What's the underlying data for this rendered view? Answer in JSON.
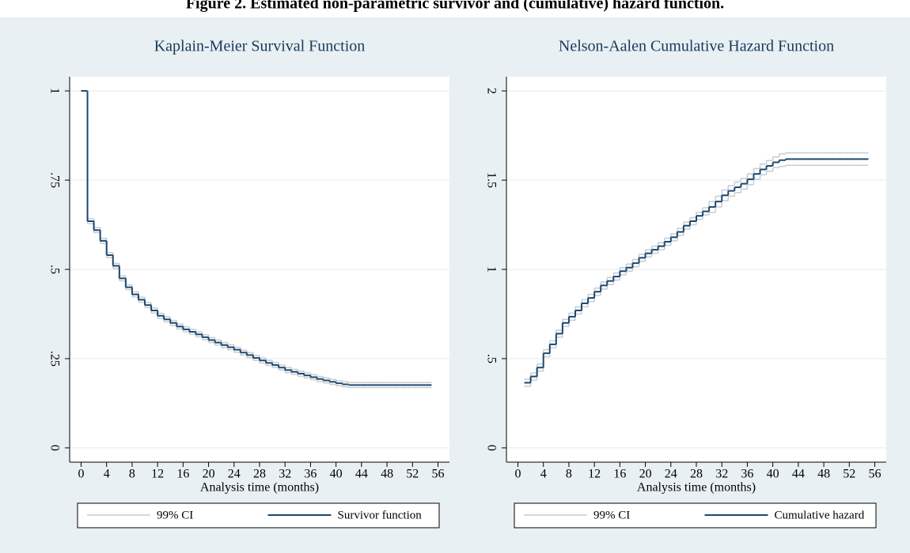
{
  "title": "Figure 2. Estimated non-parametric survivor and (cumulative) hazard function.",
  "chart_data": [
    {
      "type": "step",
      "title": "Kaplain-Meier Survival Function",
      "x_label": "Analysis time (months)",
      "x": [
        0,
        1,
        2,
        3,
        4,
        5,
        6,
        7,
        8,
        9,
        10,
        11,
        12,
        13,
        14,
        15,
        16,
        17,
        18,
        19,
        20,
        21,
        22,
        23,
        24,
        25,
        26,
        27,
        28,
        29,
        30,
        31,
        32,
        33,
        34,
        35,
        36,
        37,
        38,
        39,
        40,
        41,
        42,
        43,
        44,
        45,
        46,
        47,
        48,
        49,
        50,
        51,
        52,
        53,
        54,
        55
      ],
      "series": [
        {
          "name": "99% CI",
          "color": "#c8ccd0",
          "lower": [
            1,
            0.628,
            0.603,
            0.573,
            0.533,
            0.503,
            0.468,
            0.443,
            0.423,
            0.408,
            0.393,
            0.378,
            0.363,
            0.353,
            0.343,
            0.333,
            0.325,
            0.318,
            0.311,
            0.303,
            0.295,
            0.288,
            0.281,
            0.275,
            0.268,
            0.26,
            0.253,
            0.245,
            0.238,
            0.231,
            0.225,
            0.218,
            0.211,
            0.206,
            0.201,
            0.196,
            0.191,
            0.186,
            0.182,
            0.178,
            0.174,
            0.171,
            0.169,
            0.169,
            0.169,
            0.169,
            0.169,
            0.169,
            0.169,
            0.169,
            0.169,
            0.169,
            0.169,
            0.169,
            0.169,
            0.169
          ],
          "upper": [
            1,
            0.642,
            0.617,
            0.587,
            0.547,
            0.517,
            0.482,
            0.457,
            0.437,
            0.422,
            0.407,
            0.392,
            0.377,
            0.367,
            0.357,
            0.347,
            0.339,
            0.332,
            0.325,
            0.317,
            0.309,
            0.302,
            0.295,
            0.289,
            0.282,
            0.274,
            0.267,
            0.259,
            0.252,
            0.245,
            0.239,
            0.232,
            0.225,
            0.22,
            0.215,
            0.21,
            0.205,
            0.2,
            0.196,
            0.192,
            0.188,
            0.185,
            0.183,
            0.183,
            0.183,
            0.183,
            0.183,
            0.183,
            0.183,
            0.183,
            0.183,
            0.183,
            0.183,
            0.183,
            0.183,
            0.183
          ]
        },
        {
          "name": "Survivor function",
          "color": "#1a476f",
          "values": [
            1,
            0.635,
            0.61,
            0.58,
            0.54,
            0.51,
            0.475,
            0.45,
            0.43,
            0.415,
            0.4,
            0.385,
            0.37,
            0.36,
            0.35,
            0.34,
            0.332,
            0.325,
            0.318,
            0.31,
            0.302,
            0.295,
            0.288,
            0.282,
            0.275,
            0.267,
            0.26,
            0.252,
            0.245,
            0.238,
            0.232,
            0.225,
            0.218,
            0.213,
            0.208,
            0.203,
            0.198,
            0.193,
            0.189,
            0.185,
            0.181,
            0.178,
            0.176,
            0.176,
            0.176,
            0.176,
            0.176,
            0.176,
            0.176,
            0.176,
            0.176,
            0.176,
            0.176,
            0.176,
            0.176,
            0.176
          ]
        }
      ],
      "xlim": [
        -1.8,
        57.8
      ],
      "xticks": [
        0,
        4,
        8,
        12,
        16,
        20,
        24,
        28,
        32,
        36,
        40,
        44,
        48,
        52,
        56
      ],
      "ylim": [
        -0.04,
        1.04
      ],
      "yticks": [
        0,
        {
          "value": 0.25,
          "label": ".25"
        },
        {
          "value": 0.5,
          "label": ".5"
        },
        {
          "value": 0.75,
          "label": ".75"
        },
        1
      ],
      "grid": true
    },
    {
      "type": "step",
      "title": "Nelson-Aalen Cumulative Hazard Function",
      "x_label": "Analysis time (months)",
      "x": [
        1,
        2,
        3,
        4,
        5,
        6,
        7,
        8,
        9,
        10,
        11,
        12,
        13,
        14,
        15,
        16,
        17,
        18,
        19,
        20,
        21,
        22,
        23,
        24,
        25,
        26,
        27,
        28,
        29,
        30,
        31,
        32,
        33,
        34,
        35,
        36,
        37,
        38,
        39,
        40,
        41,
        42,
        43,
        44,
        45,
        46,
        47,
        48,
        49,
        50,
        51,
        52,
        53,
        54,
        55
      ],
      "series": [
        {
          "name": "99% CI",
          "color": "#c8ccd0",
          "lower": [
            0.345,
            0.38,
            0.43,
            0.51,
            0.56,
            0.62,
            0.68,
            0.715,
            0.75,
            0.79,
            0.82,
            0.855,
            0.89,
            0.915,
            0.94,
            0.97,
            0.99,
            1.015,
            1.045,
            1.07,
            1.09,
            1.11,
            1.135,
            1.16,
            1.19,
            1.225,
            1.25,
            1.28,
            1.305,
            1.32,
            1.35,
            1.385,
            1.41,
            1.43,
            1.45,
            1.475,
            1.505,
            1.53,
            1.55,
            1.57,
            1.577,
            1.583,
            1.583,
            1.583,
            1.583,
            1.583,
            1.583,
            1.583,
            1.583,
            1.583,
            1.583,
            1.583,
            1.583,
            1.583,
            1.583
          ],
          "upper": [
            0.385,
            0.42,
            0.47,
            0.55,
            0.6,
            0.66,
            0.72,
            0.755,
            0.79,
            0.83,
            0.86,
            0.895,
            0.93,
            0.955,
            0.98,
            1.01,
            1.03,
            1.055,
            1.085,
            1.11,
            1.13,
            1.15,
            1.175,
            1.2,
            1.23,
            1.265,
            1.29,
            1.32,
            1.345,
            1.38,
            1.41,
            1.445,
            1.47,
            1.49,
            1.51,
            1.535,
            1.565,
            1.59,
            1.61,
            1.63,
            1.647,
            1.653,
            1.653,
            1.653,
            1.653,
            1.653,
            1.653,
            1.653,
            1.653,
            1.653,
            1.653,
            1.653,
            1.653,
            1.653,
            1.653
          ]
        },
        {
          "name": "Cumulative hazard",
          "color": "#1a476f",
          "values": [
            0.365,
            0.4,
            0.45,
            0.53,
            0.58,
            0.64,
            0.7,
            0.735,
            0.77,
            0.81,
            0.84,
            0.875,
            0.91,
            0.935,
            0.96,
            0.99,
            1.01,
            1.035,
            1.065,
            1.09,
            1.11,
            1.13,
            1.155,
            1.18,
            1.21,
            1.245,
            1.27,
            1.3,
            1.325,
            1.35,
            1.38,
            1.415,
            1.44,
            1.46,
            1.48,
            1.505,
            1.535,
            1.56,
            1.58,
            1.6,
            1.612,
            1.618,
            1.618,
            1.618,
            1.618,
            1.618,
            1.618,
            1.618,
            1.618,
            1.618,
            1.618,
            1.618,
            1.618,
            1.618,
            1.618
          ]
        }
      ],
      "xlim": [
        -1.8,
        57.8
      ],
      "xticks": [
        0,
        4,
        8,
        12,
        16,
        20,
        24,
        28,
        32,
        36,
        40,
        44,
        48,
        52,
        56
      ],
      "ylim": [
        -0.08,
        2.08
      ],
      "yticks": [
        0,
        {
          "value": 0.5,
          "label": ".5"
        },
        1,
        1.5,
        2
      ],
      "grid": true
    }
  ]
}
